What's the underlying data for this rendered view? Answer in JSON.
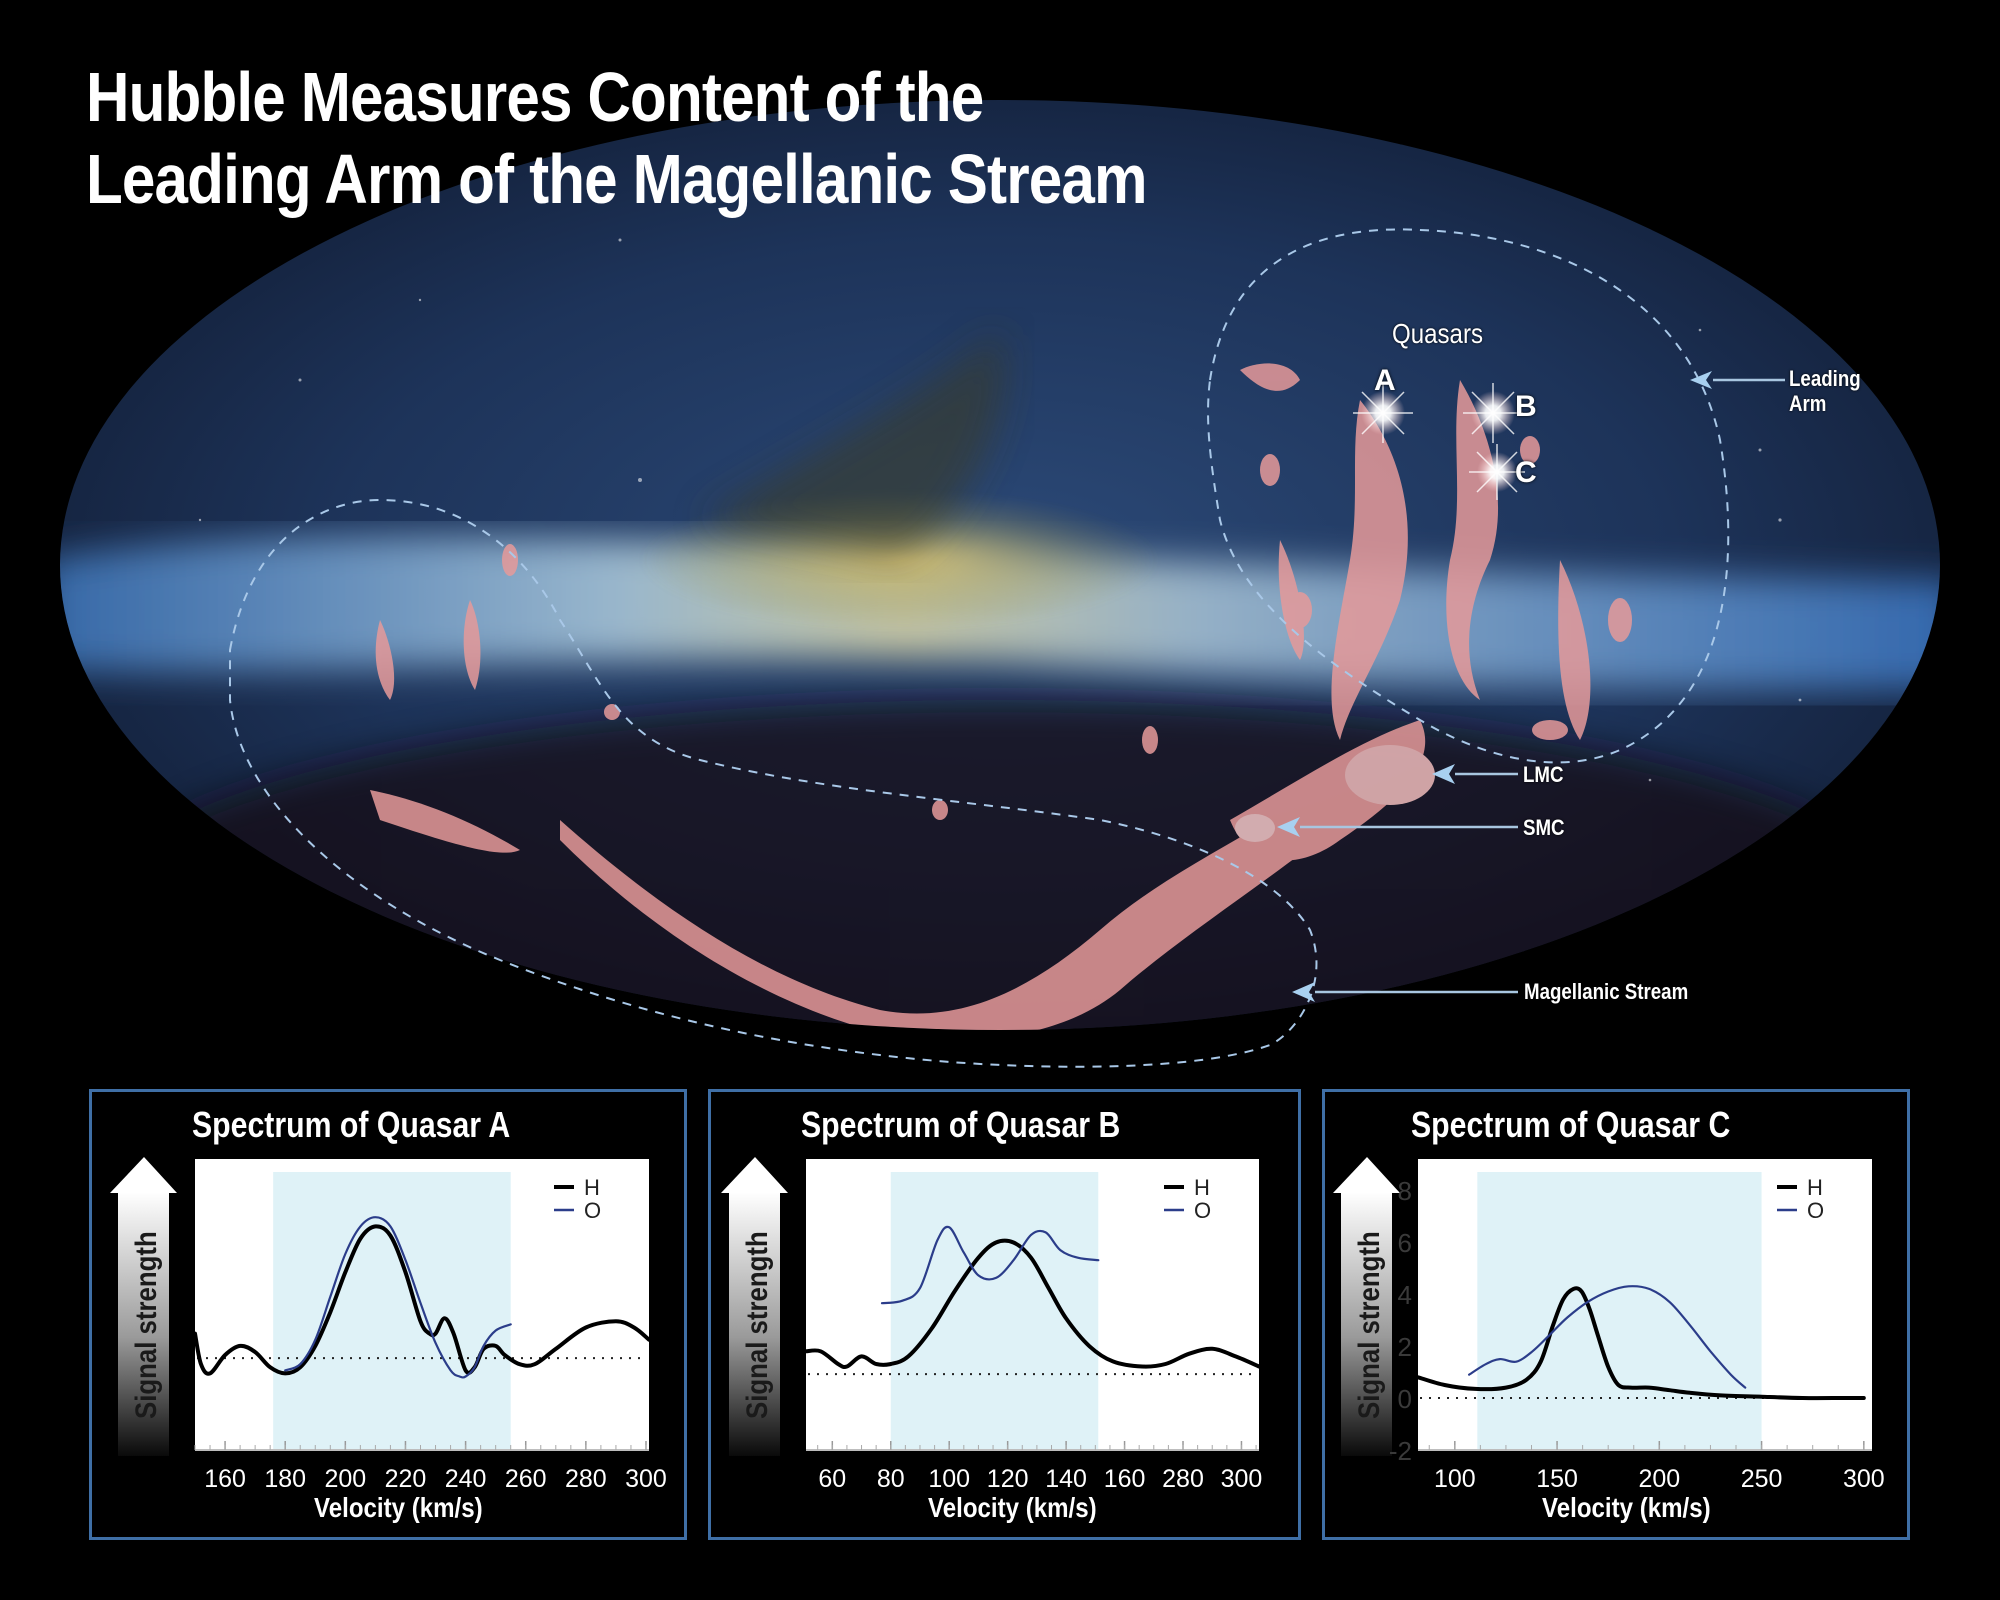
{
  "title": {
    "line1": "Hubble Measures Content of the",
    "line2": "Leading Arm of the Magellanic Stream"
  },
  "sky_map": {
    "labels": {
      "quasars": "Quasars",
      "quasar_a": "A",
      "quasar_b": "B",
      "quasar_c": "C",
      "leading_arm_1": "Leading",
      "leading_arm_2": "Arm",
      "lmc": "LMC",
      "smc": "SMC",
      "magellanic_stream": "Magellanic Stream"
    },
    "colors": {
      "gas": "#e69a9a",
      "dashed_outline": "#a9c8e8",
      "arrow": "#a8d0f0"
    }
  },
  "panels": [
    {
      "title": "Spectrum of Quasar A",
      "y_label": "Signal strength",
      "x_label": "Velocity (km/s)",
      "x_ticks": [
        "160",
        "180",
        "200",
        "220",
        "240",
        "260",
        "280",
        "300"
      ],
      "legend": [
        "H",
        "O"
      ]
    },
    {
      "title": "Spectrum of Quasar B",
      "y_label": "Signal strength",
      "x_label": "Velocity (km/s)",
      "x_ticks": [
        "60",
        "80",
        "100",
        "120",
        "140",
        "160",
        "280",
        "300"
      ],
      "legend": [
        "H",
        "O"
      ]
    },
    {
      "title": "Spectrum of Quasar C",
      "y_label": "Signal strength",
      "x_label": "Velocity (km/s)",
      "x_ticks": [
        "100",
        "150",
        "200",
        "250",
        "300"
      ],
      "y_ticks": [
        "8",
        "6",
        "4",
        "2",
        "0",
        "-2"
      ],
      "legend": [
        "H",
        "O"
      ]
    }
  ],
  "chart_data": [
    {
      "type": "line",
      "title": "Spectrum of Quasar A",
      "xlabel": "Velocity (km/s)",
      "ylabel": "Signal strength",
      "xlim": [
        150,
        301
      ],
      "ylim": [
        -3,
        6.5
      ],
      "x_ticks": [
        160,
        180,
        200,
        220,
        240,
        260,
        280,
        300
      ],
      "shaded_region": [
        176,
        255
      ],
      "baseline": 0,
      "legend_position": "upper right",
      "grid": false,
      "series": [
        {
          "name": "H",
          "color": "#000000",
          "x": [
            150,
            152,
            155,
            160,
            165,
            170,
            175,
            180,
            185,
            190,
            195,
            200,
            205,
            210,
            215,
            220,
            225,
            228,
            230,
            233,
            236,
            240,
            243,
            246,
            250,
            253,
            258,
            263,
            270,
            280,
            290,
            296,
            301
          ],
          "y": [
            0.8,
            -0.2,
            -0.5,
            0.1,
            0.4,
            0.2,
            -0.3,
            -0.5,
            -0.3,
            0.4,
            1.5,
            2.8,
            3.9,
            4.3,
            4.0,
            2.8,
            1.2,
            0.8,
            0.8,
            1.3,
            0.8,
            -0.4,
            -0.3,
            0.3,
            0.4,
            0.1,
            -0.2,
            -0.2,
            0.3,
            1.0,
            1.2,
            1.0,
            0.6
          ]
        },
        {
          "name": "O",
          "color": "#2b3d8a",
          "x": [
            180,
            185,
            190,
            195,
            200,
            205,
            210,
            215,
            220,
            225,
            230,
            235,
            238,
            240,
            243,
            246,
            250,
            255
          ],
          "y": [
            -0.4,
            -0.2,
            0.6,
            2.0,
            3.4,
            4.3,
            4.6,
            4.3,
            3.2,
            1.8,
            0.5,
            -0.4,
            -0.6,
            -0.6,
            -0.3,
            0.4,
            0.9,
            1.1
          ]
        }
      ]
    },
    {
      "type": "line",
      "title": "Spectrum of Quasar B",
      "xlabel": "Velocity (km/s)",
      "ylabel": "Signal strength",
      "x_ticks_labels": [
        "60",
        "80",
        "100",
        "120",
        "140",
        "160",
        "280",
        "300"
      ],
      "x_tick_positions_index": [
        0,
        1,
        2,
        3,
        4,
        5,
        6,
        7
      ],
      "xlim_index": [
        -0.45,
        7.3
      ],
      "ylim": [
        -3,
        8.5
      ],
      "shaded_region_index": [
        1.0,
        4.55
      ],
      "baseline": 0,
      "legend_position": "upper right",
      "grid": false,
      "series": [
        {
          "name": "H",
          "color": "#000000",
          "x_index": [
            -0.45,
            -0.2,
            0.1,
            0.25,
            0.5,
            0.75,
            1.0,
            1.3,
            1.7,
            2.1,
            2.5,
            2.8,
            3.1,
            3.4,
            3.7,
            4.0,
            4.4,
            4.8,
            5.3,
            5.7,
            6.1,
            6.5,
            6.9,
            7.3
          ],
          "y": [
            0.9,
            0.9,
            0.4,
            0.3,
            0.7,
            0.4,
            0.4,
            0.7,
            1.8,
            3.3,
            4.6,
            5.2,
            5.2,
            4.6,
            3.4,
            2.2,
            1.1,
            0.5,
            0.3,
            0.4,
            0.8,
            1.0,
            0.7,
            0.3
          ]
        },
        {
          "name": "O",
          "color": "#2b3d8a",
          "x_index": [
            0.85,
            1.2,
            1.5,
            1.8,
            2.0,
            2.25,
            2.5,
            2.8,
            3.1,
            3.4,
            3.65,
            3.9,
            4.2,
            4.55
          ],
          "y": [
            2.8,
            2.9,
            3.4,
            5.3,
            5.8,
            4.8,
            3.9,
            3.8,
            4.5,
            5.5,
            5.6,
            4.9,
            4.6,
            4.5
          ]
        }
      ]
    },
    {
      "type": "line",
      "title": "Spectrum of Quasar C",
      "xlabel": "Velocity (km/s)",
      "ylabel": "Signal strength",
      "xlim": [
        82,
        304
      ],
      "ylim": [
        -2,
        9.2
      ],
      "x_ticks": [
        100,
        150,
        200,
        250,
        300
      ],
      "y_ticks": [
        8,
        6,
        4,
        2,
        0,
        -2
      ],
      "shaded_region": [
        111,
        250
      ],
      "baseline": 0,
      "legend_position": "upper right",
      "grid": false,
      "series": [
        {
          "name": "H",
          "color": "#000000",
          "x": [
            82,
            95,
            110,
            125,
            135,
            142,
            148,
            153,
            158,
            162,
            166,
            170,
            175,
            180,
            186,
            195,
            205,
            215,
            230,
            250,
            270,
            290,
            300
          ],
          "y": [
            0.8,
            0.5,
            0.35,
            0.4,
            0.7,
            1.4,
            2.8,
            3.8,
            4.2,
            4.1,
            3.4,
            2.4,
            1.2,
            0.5,
            0.4,
            0.4,
            0.3,
            0.2,
            0.1,
            0.05,
            0.0,
            0.0,
            0.0
          ]
        },
        {
          "name": "O",
          "color": "#2b3d8a",
          "x": [
            107,
            115,
            122,
            130,
            138,
            146,
            155,
            165,
            175,
            185,
            195,
            205,
            215,
            225,
            235,
            242
          ],
          "y": [
            0.9,
            1.3,
            1.5,
            1.4,
            1.8,
            2.4,
            3.1,
            3.7,
            4.1,
            4.3,
            4.2,
            3.7,
            2.8,
            1.8,
            0.9,
            0.4
          ]
        }
      ]
    }
  ]
}
